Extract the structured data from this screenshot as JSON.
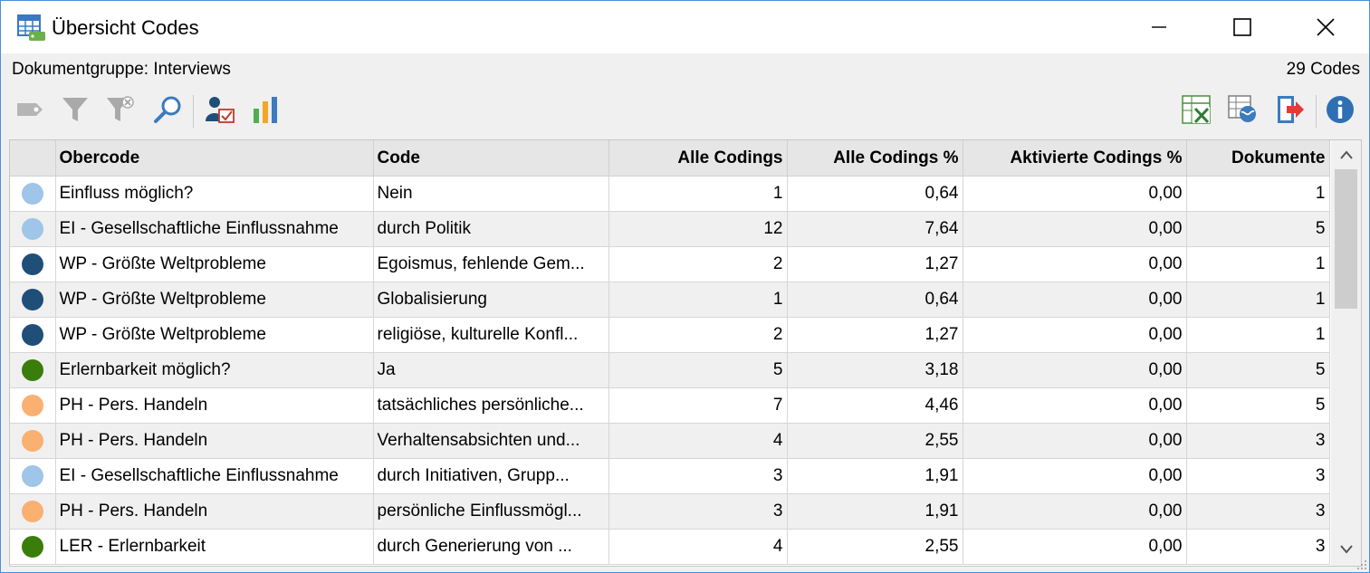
{
  "window": {
    "title": "Übersicht Codes"
  },
  "info": {
    "group_label": "Dokumentgruppe: Interviews",
    "count_label": "29 Codes"
  },
  "toolbar": {
    "left_icons": [
      "tag-icon",
      "filter-icon",
      "filter-clear-icon",
      "search-icon",
      "user-activate-icon",
      "bar-chart-icon"
    ],
    "right_icons": [
      "excel-export-icon",
      "web-export-icon",
      "export-icon",
      "info-icon"
    ]
  },
  "table": {
    "columns": [
      "",
      "Obercode",
      "Code",
      "Alle Codings",
      "Alle Codings %",
      "Aktivierte Codings %",
      "Dokumente"
    ],
    "rows": [
      {
        "color": "#9fc5e8",
        "obercode": "Einfluss möglich?",
        "code": "Nein",
        "alle": "1",
        "pct": "0,64",
        "akt": "0,00",
        "dok": "1"
      },
      {
        "color": "#9fc5e8",
        "obercode": "EI - Gesellschaftliche Einflussnahme",
        "code": "durch Politik",
        "alle": "12",
        "pct": "7,64",
        "akt": "0,00",
        "dok": "5"
      },
      {
        "color": "#1f4e79",
        "obercode": "WP - Größte Weltprobleme",
        "code": "Egoismus, fehlende Gem...",
        "alle": "2",
        "pct": "1,27",
        "akt": "0,00",
        "dok": "1"
      },
      {
        "color": "#1f4e79",
        "obercode": "WP - Größte Weltprobleme",
        "code": "Globalisierung",
        "alle": "1",
        "pct": "0,64",
        "akt": "0,00",
        "dok": "1"
      },
      {
        "color": "#1f4e79",
        "obercode": "WP - Größte Weltprobleme",
        "code": "religiöse, kulturelle Konfl...",
        "alle": "2",
        "pct": "1,27",
        "akt": "0,00",
        "dok": "1"
      },
      {
        "color": "#3a7d0a",
        "obercode": "Erlernbarkeit möglich?",
        "code": "Ja",
        "alle": "5",
        "pct": "3,18",
        "akt": "0,00",
        "dok": "5"
      },
      {
        "color": "#f9b071",
        "obercode": "PH - Pers. Handeln",
        "code": "tatsächliches persönliche...",
        "alle": "7",
        "pct": "4,46",
        "akt": "0,00",
        "dok": "5"
      },
      {
        "color": "#f9b071",
        "obercode": "PH - Pers. Handeln",
        "code": "Verhaltensabsichten und...",
        "alle": "4",
        "pct": "2,55",
        "akt": "0,00",
        "dok": "3"
      },
      {
        "color": "#9fc5e8",
        "obercode": "EI - Gesellschaftliche Einflussnahme",
        "code": "durch Initiativen, Grupp...",
        "alle": "3",
        "pct": "1,91",
        "akt": "0,00",
        "dok": "3"
      },
      {
        "color": "#f9b071",
        "obercode": "PH - Pers. Handeln",
        "code": "persönliche Einflussmögl...",
        "alle": "3",
        "pct": "1,91",
        "akt": "0,00",
        "dok": "3"
      },
      {
        "color": "#3a7d0a",
        "obercode": "LER - Erlernbarkeit",
        "code": "durch Generierung von ...",
        "alle": "4",
        "pct": "2,55",
        "akt": "0,00",
        "dok": "3"
      }
    ]
  }
}
